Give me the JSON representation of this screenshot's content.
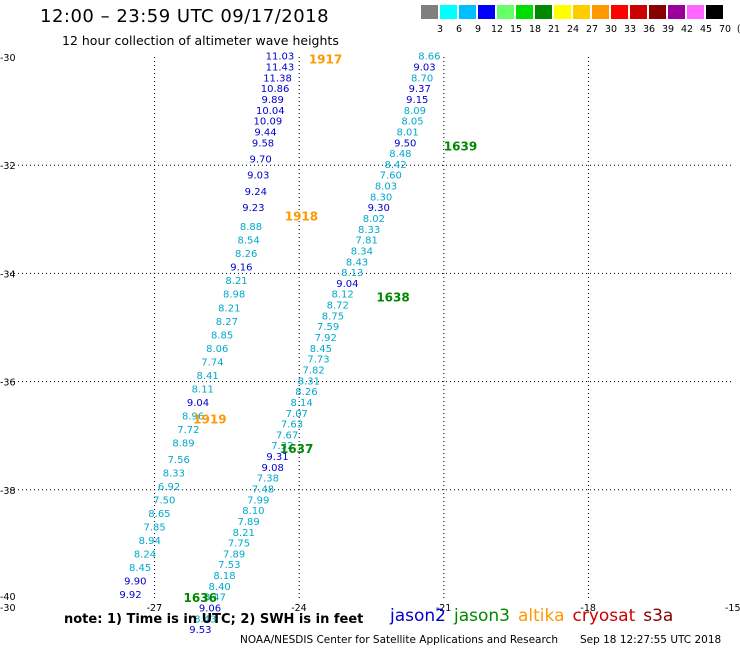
{
  "header": {
    "title": "12:00 – 23:59 UTC 09/17/2018",
    "subtitle": "12 hour collection of altimeter wave heights"
  },
  "colorbar": {
    "labels": [
      "3",
      "6",
      "9",
      "12",
      "15",
      "18",
      "21",
      "24",
      "27",
      "30",
      "33",
      "36",
      "39",
      "42",
      "45",
      "70",
      "(ft)"
    ],
    "colors": [
      "#7f7f7f",
      "#00ffff",
      "#00bfff",
      "#0000ff",
      "#66ff66",
      "#00dd00",
      "#008800",
      "#ffff00",
      "#ffcc00",
      "#ff9900",
      "#ff0000",
      "#cc0000",
      "#880000",
      "#990099",
      "#ff66ff",
      "#000000"
    ]
  },
  "chart_data": {
    "type": "scatter",
    "xlabel": "",
    "ylabel": "",
    "xlim": [
      -30,
      -15
    ],
    "ylim": [
      -40,
      -30
    ],
    "x_ticks": [
      "-30",
      "-27",
      "-24",
      "-21",
      "-18",
      "-15"
    ],
    "y_ticks": [
      "-30",
      "-32",
      "-34",
      "-36",
      "-38",
      "-40"
    ],
    "grid": true,
    "series": [
      {
        "name": "altika",
        "color": "#ff9900",
        "passes": [
          {
            "time": "1917",
            "time_x": -23.8,
            "time_y": -30.05
          },
          {
            "time": "1918",
            "time_x": -24.3,
            "time_y": -32.95
          },
          {
            "time": "1919",
            "time_x": -26.2,
            "time_y": -36.7
          }
        ],
        "points": [
          {
            "x": -24.4,
            "y": -30.05,
            "v": "11.03",
            "c": "#0000cc"
          },
          {
            "x": -24.4,
            "y": -30.25,
            "v": "11.43",
            "c": "#0000cc"
          },
          {
            "x": -24.45,
            "y": -30.45,
            "v": "11.38",
            "c": "#0000cc"
          },
          {
            "x": -24.5,
            "y": -30.65,
            "v": "10.86",
            "c": "#0000cc"
          },
          {
            "x": -24.55,
            "y": -30.85,
            "v": "9.89",
            "c": "#0000cc"
          },
          {
            "x": -24.6,
            "y": -31.05,
            "v": "10.04",
            "c": "#0000cc"
          },
          {
            "x": -24.65,
            "y": -31.25,
            "v": "10.09",
            "c": "#0000cc"
          },
          {
            "x": -24.7,
            "y": -31.45,
            "v": "9.44",
            "c": "#0000cc"
          },
          {
            "x": -24.75,
            "y": -31.65,
            "v": "9.58",
            "c": "#0000cc"
          },
          {
            "x": -24.8,
            "y": -31.95,
            "v": "9.70",
            "c": "#0000cc"
          },
          {
            "x": -24.85,
            "y": -32.25,
            "v": "9.03",
            "c": "#0000cc"
          },
          {
            "x": -24.9,
            "y": -32.55,
            "v": "9.24",
            "c": "#0000cc"
          },
          {
            "x": -24.95,
            "y": -32.85,
            "v": "9.23",
            "c": "#0000cc"
          },
          {
            "x": -25.0,
            "y": -33.2,
            "v": "8.88",
            "c": "#00aacc"
          },
          {
            "x": -25.05,
            "y": -33.45,
            "v": "8.54",
            "c": "#00aacc"
          },
          {
            "x": -25.1,
            "y": -33.7,
            "v": "8.26",
            "c": "#00aacc"
          },
          {
            "x": -25.2,
            "y": -33.95,
            "v": "9.16",
            "c": "#0000cc"
          },
          {
            "x": -25.3,
            "y": -34.2,
            "v": "8.21",
            "c": "#00aacc"
          },
          {
            "x": -25.35,
            "y": -34.45,
            "v": "8.98",
            "c": "#00aacc"
          },
          {
            "x": -25.45,
            "y": -34.7,
            "v": "8.21",
            "c": "#00aacc"
          },
          {
            "x": -25.5,
            "y": -34.95,
            "v": "8.27",
            "c": "#00aacc"
          },
          {
            "x": -25.6,
            "y": -35.2,
            "v": "8.85",
            "c": "#00aacc"
          },
          {
            "x": -25.7,
            "y": -35.45,
            "v": "8.06",
            "c": "#00aacc"
          },
          {
            "x": -25.8,
            "y": -35.7,
            "v": "7.74",
            "c": "#00aacc"
          },
          {
            "x": -25.9,
            "y": -35.95,
            "v": "8.41",
            "c": "#00aacc"
          },
          {
            "x": -26.0,
            "y": -36.2,
            "v": "8.11",
            "c": "#00aacc"
          },
          {
            "x": -26.1,
            "y": -36.45,
            "v": "9.04",
            "c": "#0000cc"
          },
          {
            "x": -26.2,
            "y": -36.7,
            "v": "8.96",
            "c": "#00aacc"
          },
          {
            "x": -26.3,
            "y": -36.95,
            "v": "7.72",
            "c": "#00aacc"
          },
          {
            "x": -26.4,
            "y": -37.2,
            "v": "8.89",
            "c": "#00aacc"
          },
          {
            "x": -26.5,
            "y": -37.5,
            "v": "7.56",
            "c": "#00aacc"
          },
          {
            "x": -26.6,
            "y": -37.75,
            "v": "8.33",
            "c": "#00aacc"
          },
          {
            "x": -26.7,
            "y": -38.0,
            "v": "6.92",
            "c": "#00aacc"
          },
          {
            "x": -26.8,
            "y": -38.25,
            "v": "7.50",
            "c": "#00aacc"
          },
          {
            "x": -26.9,
            "y": -38.5,
            "v": "8.65",
            "c": "#00aacc"
          },
          {
            "x": -27.0,
            "y": -38.75,
            "v": "7.85",
            "c": "#00aacc"
          },
          {
            "x": -27.1,
            "y": -39.0,
            "v": "8.94",
            "c": "#00aacc"
          },
          {
            "x": -27.2,
            "y": -39.25,
            "v": "8.24",
            "c": "#00aacc"
          },
          {
            "x": -27.3,
            "y": -39.5,
            "v": "8.45",
            "c": "#00aacc"
          },
          {
            "x": -27.4,
            "y": -39.75,
            "v": "9.90",
            "c": "#0000cc"
          },
          {
            "x": -27.5,
            "y": -40.0,
            "v": "9.92",
            "c": "#0000cc"
          }
        ]
      },
      {
        "name": "jason3",
        "color": "#008800",
        "passes": [
          {
            "time": "1639",
            "time_x": -21.0,
            "time_y": -31.65
          },
          {
            "time": "1638",
            "time_x": -22.4,
            "time_y": -34.45
          },
          {
            "time": "1637",
            "time_x": -24.4,
            "time_y": -37.25
          },
          {
            "time": "1636",
            "time_x": -26.4,
            "time_y": -40.0
          }
        ],
        "points": [
          {
            "x": -21.3,
            "y": -30.05,
            "v": "8.66",
            "c": "#00aacc"
          },
          {
            "x": -21.4,
            "y": -30.25,
            "v": "9.03",
            "c": "#0000cc"
          },
          {
            "x": -21.45,
            "y": -30.45,
            "v": "8.70",
            "c": "#00aacc"
          },
          {
            "x": -21.5,
            "y": -30.65,
            "v": "9.37",
            "c": "#0000cc"
          },
          {
            "x": -21.55,
            "y": -30.85,
            "v": "9.15",
            "c": "#0000cc"
          },
          {
            "x": -21.6,
            "y": -31.05,
            "v": "8.09",
            "c": "#00aacc"
          },
          {
            "x": -21.65,
            "y": -31.25,
            "v": "8.05",
            "c": "#00aacc"
          },
          {
            "x": -21.75,
            "y": -31.45,
            "v": "8.01",
            "c": "#00aacc"
          },
          {
            "x": -21.8,
            "y": -31.65,
            "v": "9.50",
            "c": "#0000cc"
          },
          {
            "x": -21.9,
            "y": -31.85,
            "v": "8.48",
            "c": "#00aacc"
          },
          {
            "x": -22.0,
            "y": -32.05,
            "v": "8.42",
            "c": "#00aacc"
          },
          {
            "x": -22.1,
            "y": -32.25,
            "v": "7.60",
            "c": "#00aacc"
          },
          {
            "x": -22.2,
            "y": -32.45,
            "v": "8.03",
            "c": "#00aacc"
          },
          {
            "x": -22.3,
            "y": -32.65,
            "v": "8.30",
            "c": "#00aacc"
          },
          {
            "x": -22.35,
            "y": -32.85,
            "v": "9.30",
            "c": "#0000cc"
          },
          {
            "x": -22.45,
            "y": -33.05,
            "v": "8.02",
            "c": "#00aacc"
          },
          {
            "x": -22.55,
            "y": -33.25,
            "v": "8.33",
            "c": "#00aacc"
          },
          {
            "x": -22.6,
            "y": -33.45,
            "v": "7.81",
            "c": "#00aacc"
          },
          {
            "x": -22.7,
            "y": -33.65,
            "v": "8.34",
            "c": "#00aacc"
          },
          {
            "x": -22.8,
            "y": -33.85,
            "v": "8.43",
            "c": "#00aacc"
          },
          {
            "x": -22.9,
            "y": -34.05,
            "v": "8.13",
            "c": "#00aacc"
          },
          {
            "x": -23.0,
            "y": -34.25,
            "v": "9.04",
            "c": "#0000cc"
          },
          {
            "x": -23.1,
            "y": -34.45,
            "v": "8.12",
            "c": "#00aacc"
          },
          {
            "x": -23.2,
            "y": -34.65,
            "v": "8.72",
            "c": "#00aacc"
          },
          {
            "x": -23.3,
            "y": -34.85,
            "v": "8.75",
            "c": "#00aacc"
          },
          {
            "x": -23.4,
            "y": -35.05,
            "v": "7.59",
            "c": "#00aacc"
          },
          {
            "x": -23.45,
            "y": -35.25,
            "v": "7.92",
            "c": "#00aacc"
          },
          {
            "x": -23.55,
            "y": -35.45,
            "v": "8.45",
            "c": "#00aacc"
          },
          {
            "x": -23.6,
            "y": -35.65,
            "v": "7.73",
            "c": "#00aacc"
          },
          {
            "x": -23.7,
            "y": -35.85,
            "v": "7.82",
            "c": "#00aacc"
          },
          {
            "x": -23.8,
            "y": -36.05,
            "v": "8.31",
            "c": "#00aacc"
          },
          {
            "x": -23.85,
            "y": -36.25,
            "v": "8.26",
            "c": "#00aacc"
          },
          {
            "x": -23.95,
            "y": -36.45,
            "v": "8.14",
            "c": "#00aacc"
          },
          {
            "x": -24.05,
            "y": -36.65,
            "v": "7.07",
            "c": "#00aacc"
          },
          {
            "x": -24.15,
            "y": -36.85,
            "v": "7.63",
            "c": "#00aacc"
          },
          {
            "x": -24.25,
            "y": -37.05,
            "v": "7.67",
            "c": "#00aacc"
          },
          {
            "x": -24.35,
            "y": -37.25,
            "v": "7.32",
            "c": "#00aacc"
          },
          {
            "x": -24.45,
            "y": -37.45,
            "v": "9.31",
            "c": "#0000cc"
          },
          {
            "x": -24.55,
            "y": -37.65,
            "v": "9.08",
            "c": "#0000cc"
          },
          {
            "x": -24.65,
            "y": -37.85,
            "v": "7.38",
            "c": "#00aacc"
          },
          {
            "x": -24.75,
            "y": -38.05,
            "v": "7.48",
            "c": "#00aacc"
          },
          {
            "x": -24.85,
            "y": -38.25,
            "v": "7.99",
            "c": "#00aacc"
          },
          {
            "x": -24.95,
            "y": -38.45,
            "v": "8.10",
            "c": "#00aacc"
          },
          {
            "x": -25.05,
            "y": -38.65,
            "v": "7.89",
            "c": "#00aacc"
          },
          {
            "x": -25.15,
            "y": -38.85,
            "v": "8.21",
            "c": "#00aacc"
          },
          {
            "x": -25.25,
            "y": -39.05,
            "v": "7.75",
            "c": "#00aacc"
          },
          {
            "x": -25.35,
            "y": -39.25,
            "v": "7.89",
            "c": "#00aacc"
          },
          {
            "x": -25.45,
            "y": -39.45,
            "v": "7.53",
            "c": "#00aacc"
          },
          {
            "x": -25.55,
            "y": -39.65,
            "v": "8.18",
            "c": "#00aacc"
          },
          {
            "x": -25.65,
            "y": -39.85,
            "v": "8.40",
            "c": "#00aacc"
          },
          {
            "x": -25.75,
            "y": -40.05,
            "v": "8.47",
            "c": "#00aacc"
          },
          {
            "x": -25.85,
            "y": -40.25,
            "v": "9.06",
            "c": "#0000cc"
          },
          {
            "x": -25.95,
            "y": -40.45,
            "v": "8.43",
            "c": "#00aacc"
          },
          {
            "x": -26.05,
            "y": -40.65,
            "v": "9.53",
            "c": "#0000cc"
          }
        ]
      }
    ]
  },
  "notes": {
    "note_text": "note:  1) Time is in UTC; 2) SWH is in feet"
  },
  "legend": {
    "items": [
      {
        "label": "jason2",
        "color": "#0000cc"
      },
      {
        "label": "jason3",
        "color": "#008800"
      },
      {
        "label": "altika",
        "color": "#ff9900"
      },
      {
        "label": "cryosat",
        "color": "#cc0000"
      },
      {
        "label": "s3a",
        "color": "#880000"
      }
    ]
  },
  "footer": {
    "org": "NOAA/NESDIS Center for Satellite Applications and Research",
    "timestamp": "Sep 18 12:27:55 UTC 2018"
  }
}
